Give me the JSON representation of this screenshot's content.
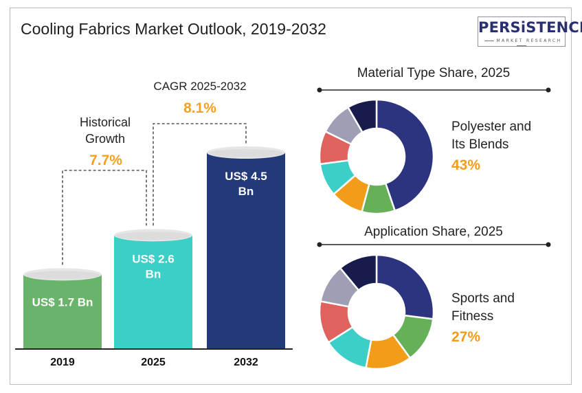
{
  "header": {
    "title": "Cooling Fabrics Market Outlook, 2019-2032",
    "logo_text": "PERSiSTENCE",
    "logo_subtext": "MARKET RESEARCH"
  },
  "chart_data": [
    {
      "type": "bar",
      "categories": [
        "2019",
        "2025",
        "2032"
      ],
      "values": [
        1.7,
        2.6,
        4.5
      ],
      "unit": "US$ Bn",
      "value_labels": [
        [
          "US$ 1.7 Bn"
        ],
        [
          "US$ 2.6",
          "Bn"
        ],
        [
          "US$ 4.5",
          "Bn"
        ]
      ],
      "colors": [
        "#6ab36a",
        "#3ccfc8",
        "#223a7a"
      ],
      "annotations": {
        "historical": {
          "label_lines": [
            "Historical",
            "Growth"
          ],
          "value": "7.7%"
        },
        "cagr": {
          "label": "CAGR 2025-2032",
          "value": "8.1%"
        }
      },
      "accent_color": "#f5a11e"
    },
    {
      "type": "pie",
      "title": "Material Type Share, 2025",
      "highlight": {
        "label_lines": [
          "Polyester and",
          "Its Blends"
        ],
        "value": "43%"
      },
      "slices": [
        43,
        9,
        9,
        9,
        9,
        9,
        8
      ],
      "colors": [
        "#2c3480",
        "#66b05a",
        "#f39c19",
        "#3ccfc8",
        "#e0625f",
        "#9e9eb4",
        "#171c4d"
      ]
    },
    {
      "type": "pie",
      "title": "Application Share, 2025",
      "highlight": {
        "label_lines": [
          "Sports and",
          "Fitness"
        ],
        "value": "27%"
      },
      "slices": [
        27,
        13,
        13,
        13,
        12,
        11,
        11
      ],
      "colors": [
        "#2c3480",
        "#66b05a",
        "#f39c19",
        "#3ccfc8",
        "#e0625f",
        "#9e9eb4",
        "#171c4d"
      ]
    }
  ]
}
